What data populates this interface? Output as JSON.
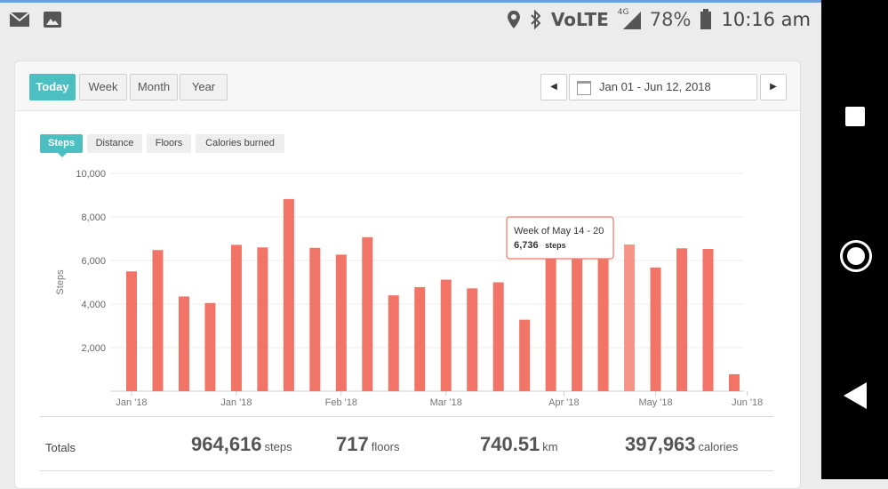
{
  "status_bar": {
    "left_icons": [
      "mail-icon",
      "image-icon"
    ],
    "right_icons": [
      "location-icon",
      "bluetooth-icon",
      "volte-icon",
      "signal-icon",
      "battery-icon"
    ],
    "volte_text": "VoLTE",
    "network": "4G",
    "battery": "78%",
    "time": "10:16 am"
  },
  "period_tabs": [
    "Today",
    "Week",
    "Month",
    "Year"
  ],
  "active_period": "Today",
  "date_range": "Jan 01 - Jun 12, 2018",
  "metric_tabs": [
    "Steps",
    "Distance",
    "Floors",
    "Calories burned"
  ],
  "active_metric": "Steps",
  "chart_data": {
    "type": "bar",
    "ylabel": "Steps",
    "ylim": [
      0,
      10000
    ],
    "yticks": [
      "2,000",
      "4,000",
      "6,000",
      "8,000",
      "10,000"
    ],
    "ytick_values": [
      2000,
      4000,
      6000,
      8000,
      10000
    ],
    "xtick_labels": [
      "Jan '18",
      "Jan '18",
      "Feb '18",
      "Mar '18",
      "Apr '18",
      "May '18",
      "Jun '18"
    ],
    "xtick_bar_index": [
      0,
      4,
      8,
      12,
      16.5,
      20,
      23.5
    ],
    "values": [
      5500,
      6480,
      4350,
      4050,
      6720,
      6600,
      8820,
      6580,
      6270,
      7070,
      4400,
      4780,
      5120,
      4720,
      5000,
      3280,
      7500,
      6740,
      6200,
      6736,
      5680,
      6560,
      6530,
      780
    ],
    "bar_color": "#f27466",
    "highlight_index": 19,
    "highlight_color": "#f79488",
    "tooltip": {
      "title": "Week of May 14 - 20",
      "value": "6,736",
      "unit": "steps"
    }
  },
  "totals": {
    "label": "Totals",
    "items": [
      {
        "value": "964,616",
        "unit": "steps"
      },
      {
        "value": "717",
        "unit": "floors"
      },
      {
        "value": "740.51",
        "unit": "km"
      },
      {
        "value": "397,963",
        "unit": "calories"
      }
    ]
  }
}
